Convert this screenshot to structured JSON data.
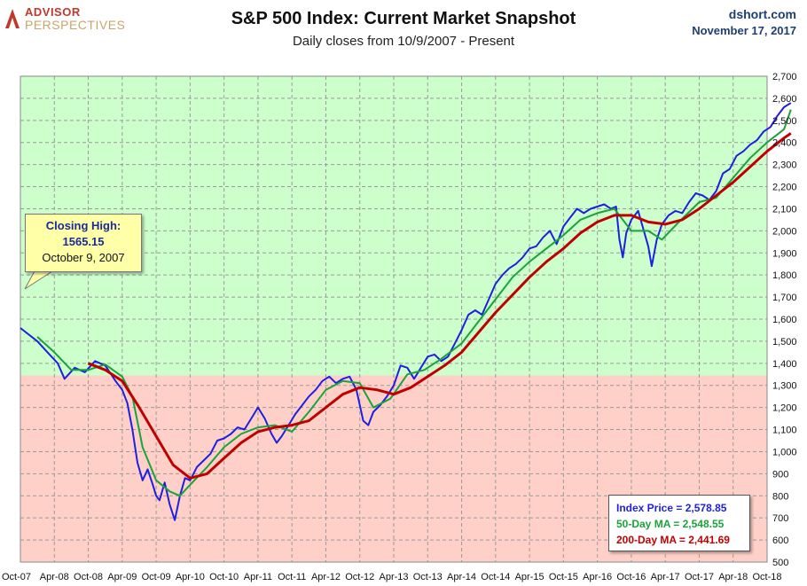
{
  "header": {
    "logo_top": "ADVISOR",
    "logo_bottom": "PERSPECTIVES",
    "title": "S&P 500 Index: Current Market Snapshot",
    "subtitle": "Daily closes from 10/9/2007 - Present",
    "site": "dshort.com",
    "date": "November 17, 2017"
  },
  "callout": {
    "line1": "Closing High:",
    "line2": "1565.15",
    "line3": "October 9, 2007"
  },
  "legend": {
    "index_price": "Index Price =  2,578.85",
    "ma50": "50-Day MA = 2,548.55",
    "ma200": "200-Day MA = 2,441.69"
  },
  "colors": {
    "price": "#1f1fe0",
    "ma50": "#1aa33a",
    "ma200": "#c00000",
    "zone_above": "#ccffcc",
    "zone_below": "#ffd0c8",
    "brand_red": "#c0392b",
    "brand_navy": "#1f3f73"
  },
  "chart_data": {
    "type": "line",
    "title": "S&P 500 Index: Current Market Snapshot",
    "ylim": [
      500,
      2700
    ],
    "y_ticks": [
      "500",
      "600",
      "700",
      "800",
      "900",
      "1,000",
      "1,100",
      "1,200",
      "1,300",
      "1,400",
      "1,500",
      "1,600",
      "1,700",
      "1,800",
      "1,900",
      "2,000",
      "2,100",
      "2,200",
      "2,300",
      "2,400",
      "2,500",
      "2,600",
      "2,700"
    ],
    "x_ticks": [
      "Oct-07",
      "Apr-08",
      "Oct-08",
      "Apr-09",
      "Oct-09",
      "Apr-10",
      "Oct-10",
      "Apr-11",
      "Oct-11",
      "Apr-12",
      "Oct-12",
      "Apr-13",
      "Oct-13",
      "Apr-14",
      "Oct-14",
      "Apr-15",
      "Oct-15",
      "Apr-16",
      "Oct-16",
      "Apr-17",
      "Oct-17",
      "Apr-18",
      "Oct-18"
    ],
    "zone_split": 1345,
    "grid": true,
    "series": [
      {
        "name": "Index Price",
        "color": "#1f1fe0",
        "points": [
          [
            0,
            1560
          ],
          [
            0.5,
            1500
          ],
          [
            0.8,
            1450
          ],
          [
            1.1,
            1400
          ],
          [
            1.3,
            1330
          ],
          [
            1.6,
            1380
          ],
          [
            1.9,
            1360
          ],
          [
            2.2,
            1410
          ],
          [
            2.5,
            1390
          ],
          [
            2.8,
            1320
          ],
          [
            3.0,
            1280
          ],
          [
            3.15,
            1220
          ],
          [
            3.3,
            1100
          ],
          [
            3.45,
            950
          ],
          [
            3.6,
            870
          ],
          [
            3.75,
            920
          ],
          [
            3.9,
            850
          ],
          [
            4.0,
            800
          ],
          [
            4.1,
            780
          ],
          [
            4.25,
            860
          ],
          [
            4.4,
            760
          ],
          [
            4.55,
            690
          ],
          [
            4.7,
            800
          ],
          [
            4.85,
            880
          ],
          [
            5.0,
            870
          ],
          [
            5.2,
            930
          ],
          [
            5.4,
            960
          ],
          [
            5.6,
            990
          ],
          [
            5.8,
            1050
          ],
          [
            6.0,
            1060
          ],
          [
            6.2,
            1080
          ],
          [
            6.4,
            1110
          ],
          [
            6.6,
            1100
          ],
          [
            6.8,
            1150
          ],
          [
            7.0,
            1200
          ],
          [
            7.2,
            1150
          ],
          [
            7.4,
            1080
          ],
          [
            7.55,
            1040
          ],
          [
            7.7,
            1070
          ],
          [
            7.9,
            1120
          ],
          [
            8.1,
            1170
          ],
          [
            8.3,
            1210
          ],
          [
            8.5,
            1250
          ],
          [
            8.7,
            1280
          ],
          [
            8.9,
            1320
          ],
          [
            9.1,
            1340
          ],
          [
            9.3,
            1310
          ],
          [
            9.5,
            1330
          ],
          [
            9.7,
            1340
          ],
          [
            9.9,
            1280
          ],
          [
            10.1,
            1140
          ],
          [
            10.25,
            1120
          ],
          [
            10.4,
            1180
          ],
          [
            10.6,
            1210
          ],
          [
            10.8,
            1250
          ],
          [
            11.0,
            1300
          ],
          [
            11.2,
            1390
          ],
          [
            11.4,
            1380
          ],
          [
            11.6,
            1330
          ],
          [
            11.8,
            1380
          ],
          [
            12.0,
            1430
          ],
          [
            12.2,
            1440
          ],
          [
            12.4,
            1410
          ],
          [
            12.6,
            1430
          ],
          [
            12.8,
            1490
          ],
          [
            13.0,
            1550
          ],
          [
            13.2,
            1620
          ],
          [
            13.4,
            1640
          ],
          [
            13.6,
            1620
          ],
          [
            13.8,
            1690
          ],
          [
            14.0,
            1760
          ],
          [
            14.2,
            1800
          ],
          [
            14.4,
            1830
          ],
          [
            14.6,
            1850
          ],
          [
            14.8,
            1880
          ],
          [
            15.0,
            1920
          ],
          [
            15.2,
            1930
          ],
          [
            15.4,
            1970
          ],
          [
            15.6,
            2000
          ],
          [
            15.8,
            1940
          ],
          [
            16.0,
            2020
          ],
          [
            16.2,
            2060
          ],
          [
            16.4,
            2100
          ],
          [
            16.6,
            2080
          ],
          [
            16.8,
            2100
          ],
          [
            17.0,
            2110
          ],
          [
            17.2,
            2120
          ],
          [
            17.4,
            2100
          ],
          [
            17.55,
            2110
          ],
          [
            17.65,
            1960
          ],
          [
            17.75,
            1880
          ],
          [
            17.85,
            1990
          ],
          [
            18.0,
            2050
          ],
          [
            18.2,
            2090
          ],
          [
            18.35,
            2010
          ],
          [
            18.5,
            1930
          ],
          [
            18.6,
            1840
          ],
          [
            18.75,
            1960
          ],
          [
            18.9,
            2030
          ],
          [
            19.1,
            2070
          ],
          [
            19.3,
            2090
          ],
          [
            19.5,
            2080
          ],
          [
            19.7,
            2130
          ],
          [
            19.9,
            2170
          ],
          [
            20.1,
            2160
          ],
          [
            20.3,
            2140
          ],
          [
            20.5,
            2180
          ],
          [
            20.7,
            2260
          ],
          [
            20.9,
            2280
          ],
          [
            21.1,
            2340
          ],
          [
            21.3,
            2360
          ],
          [
            21.5,
            2390
          ],
          [
            21.7,
            2410
          ],
          [
            21.9,
            2450
          ],
          [
            22.1,
            2470
          ],
          [
            22.3,
            2520
          ],
          [
            22.5,
            2560
          ],
          [
            22.7,
            2579
          ]
        ]
      },
      {
        "name": "50-Day MA",
        "color": "#1aa33a",
        "points": [
          [
            0.5,
            1520
          ],
          [
            1.0,
            1450
          ],
          [
            1.5,
            1370
          ],
          [
            2.0,
            1370
          ],
          [
            2.5,
            1395
          ],
          [
            3.0,
            1340
          ],
          [
            3.3,
            1250
          ],
          [
            3.6,
            1020
          ],
          [
            4.0,
            870
          ],
          [
            4.4,
            820
          ],
          [
            4.7,
            800
          ],
          [
            5.0,
            850
          ],
          [
            5.5,
            930
          ],
          [
            6.0,
            1020
          ],
          [
            6.5,
            1080
          ],
          [
            7.0,
            1110
          ],
          [
            7.5,
            1120
          ],
          [
            8.0,
            1090
          ],
          [
            8.5,
            1180
          ],
          [
            9.0,
            1280
          ],
          [
            9.5,
            1320
          ],
          [
            10.0,
            1310
          ],
          [
            10.4,
            1200
          ],
          [
            10.9,
            1240
          ],
          [
            11.4,
            1350
          ],
          [
            11.9,
            1370
          ],
          [
            12.4,
            1420
          ],
          [
            13.0,
            1490
          ],
          [
            13.5,
            1590
          ],
          [
            14.0,
            1690
          ],
          [
            14.5,
            1790
          ],
          [
            15.0,
            1860
          ],
          [
            15.5,
            1920
          ],
          [
            16.0,
            1980
          ],
          [
            16.5,
            2050
          ],
          [
            17.0,
            2080
          ],
          [
            17.5,
            2100
          ],
          [
            18.0,
            2000
          ],
          [
            18.5,
            2000
          ],
          [
            18.9,
            1960
          ],
          [
            19.4,
            2040
          ],
          [
            20.0,
            2130
          ],
          [
            20.5,
            2150
          ],
          [
            21.0,
            2240
          ],
          [
            21.5,
            2330
          ],
          [
            22.0,
            2400
          ],
          [
            22.5,
            2460
          ],
          [
            22.7,
            2549
          ]
        ]
      },
      {
        "name": "200-Day MA",
        "color": "#c00000",
        "points": [
          [
            2.0,
            1400
          ],
          [
            2.5,
            1370
          ],
          [
            3.0,
            1320
          ],
          [
            3.5,
            1200
          ],
          [
            4.0,
            1070
          ],
          [
            4.5,
            940
          ],
          [
            5.0,
            880
          ],
          [
            5.5,
            900
          ],
          [
            6.0,
            970
          ],
          [
            6.5,
            1040
          ],
          [
            7.0,
            1090
          ],
          [
            7.5,
            1110
          ],
          [
            8.0,
            1120
          ],
          [
            8.5,
            1140
          ],
          [
            9.0,
            1200
          ],
          [
            9.5,
            1260
          ],
          [
            10.0,
            1290
          ],
          [
            10.5,
            1280
          ],
          [
            11.0,
            1260
          ],
          [
            11.5,
            1290
          ],
          [
            12.0,
            1340
          ],
          [
            12.5,
            1390
          ],
          [
            13.0,
            1450
          ],
          [
            13.5,
            1540
          ],
          [
            14.0,
            1630
          ],
          [
            14.5,
            1710
          ],
          [
            15.0,
            1790
          ],
          [
            15.5,
            1860
          ],
          [
            16.0,
            1920
          ],
          [
            16.5,
            1990
          ],
          [
            17.0,
            2040
          ],
          [
            17.5,
            2070
          ],
          [
            18.0,
            2070
          ],
          [
            18.5,
            2040
          ],
          [
            19.0,
            2030
          ],
          [
            19.5,
            2050
          ],
          [
            20.0,
            2100
          ],
          [
            20.5,
            2160
          ],
          [
            21.0,
            2220
          ],
          [
            21.5,
            2290
          ],
          [
            22.0,
            2360
          ],
          [
            22.5,
            2420
          ],
          [
            22.7,
            2442
          ]
        ]
      }
    ]
  }
}
